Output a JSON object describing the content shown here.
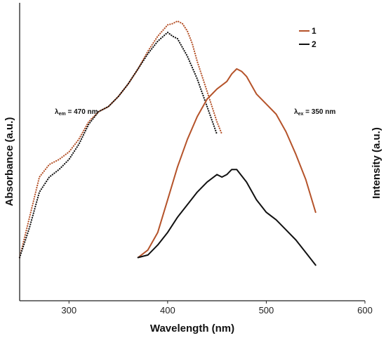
{
  "chart_data": {
    "type": "line",
    "xlabel": "Wavelength (nm)",
    "ylabel_left": "Absorbance (a.u.)",
    "ylabel_right": "Intensity (a.u.)",
    "xlim": [
      250,
      600
    ],
    "ylim": [
      0,
      1
    ],
    "x_ticks": [
      300,
      400,
      500,
      600
    ],
    "grid": false,
    "legend_position": "top-right",
    "annotations": {
      "excitation": {
        "prefix": "λ",
        "sub": "em",
        "suffix": " = 470 nm",
        "x": 290,
        "y": 0.735
      },
      "emission": {
        "prefix": "λ",
        "sub": "ex",
        "suffix": " = 350 nm",
        "x": 502,
        "y": 0.735
      }
    },
    "series": [
      {
        "name": "1",
        "kind": "absorbance",
        "color": "#b5532a",
        "style": "dotted",
        "x": [
          250,
          260,
          270,
          280,
          290,
          300,
          310,
          320,
          330,
          340,
          350,
          360,
          370,
          380,
          390,
          400,
          405,
          410,
          415,
          420,
          425,
          430,
          440,
          450,
          455
        ],
        "y": [
          0.06,
          0.22,
          0.38,
          0.43,
          0.45,
          0.48,
          0.53,
          0.6,
          0.64,
          0.66,
          0.7,
          0.75,
          0.81,
          0.88,
          0.94,
          0.985,
          0.99,
          1.0,
          0.99,
          0.96,
          0.91,
          0.84,
          0.72,
          0.6,
          0.55
        ]
      },
      {
        "name": "2",
        "kind": "absorbance",
        "color": "#111111",
        "style": "dotted",
        "x": [
          250,
          260,
          270,
          280,
          290,
          300,
          310,
          320,
          330,
          340,
          350,
          360,
          370,
          380,
          390,
          400,
          405,
          410,
          420,
          430,
          440,
          450
        ],
        "y": [
          0.06,
          0.18,
          0.32,
          0.38,
          0.41,
          0.45,
          0.51,
          0.59,
          0.64,
          0.66,
          0.7,
          0.75,
          0.81,
          0.87,
          0.92,
          0.955,
          0.94,
          0.93,
          0.86,
          0.77,
          0.66,
          0.55
        ]
      },
      {
        "name": "1",
        "kind": "emission",
        "color": "#b5532a",
        "style": "solid",
        "x": [
          370,
          380,
          390,
          400,
          410,
          420,
          430,
          440,
          450,
          460,
          465,
          470,
          475,
          480,
          490,
          500,
          510,
          520,
          530,
          540,
          550
        ],
        "y": [
          0.06,
          0.09,
          0.16,
          0.29,
          0.42,
          0.53,
          0.62,
          0.69,
          0.73,
          0.76,
          0.79,
          0.81,
          0.8,
          0.78,
          0.71,
          0.67,
          0.63,
          0.56,
          0.47,
          0.37,
          0.24
        ]
      },
      {
        "name": "2",
        "kind": "emission",
        "color": "#111111",
        "style": "solid",
        "x": [
          370,
          380,
          390,
          400,
          410,
          420,
          430,
          440,
          450,
          455,
          460,
          465,
          470,
          480,
          490,
          500,
          510,
          520,
          530,
          540,
          550
        ],
        "y": [
          0.06,
          0.07,
          0.11,
          0.16,
          0.22,
          0.27,
          0.32,
          0.36,
          0.39,
          0.38,
          0.39,
          0.41,
          0.41,
          0.36,
          0.29,
          0.24,
          0.21,
          0.17,
          0.13,
          0.08,
          0.03
        ]
      }
    ]
  },
  "legend": {
    "items": [
      {
        "label": "1",
        "color": "#b5532a"
      },
      {
        "label": "2",
        "color": "#111111"
      }
    ]
  }
}
